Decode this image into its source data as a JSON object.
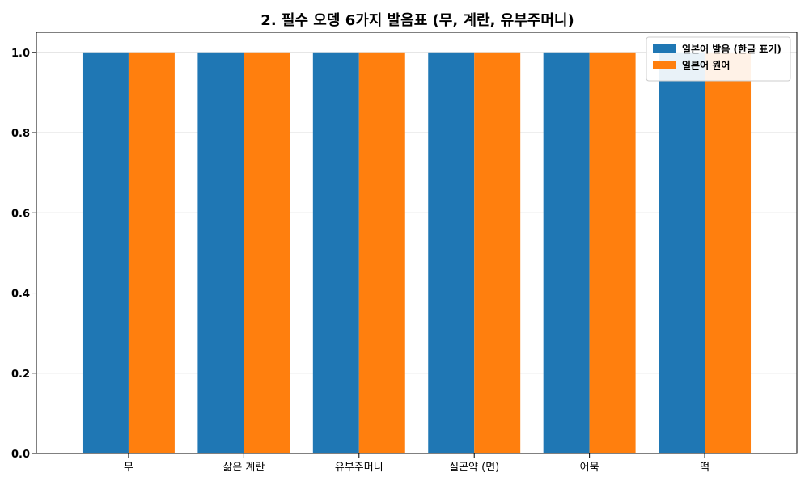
{
  "chart_data": {
    "type": "bar",
    "title": "2. 필수 오뎅 6가지 발음표 (무, 계란, 유부주머니)",
    "xlabel": "",
    "ylabel": "",
    "categories": [
      "무",
      "삶은 계란",
      "유부주머니",
      "실곤약 (면)",
      "어묵",
      "떡"
    ],
    "series": [
      {
        "name": "일본어 발음 (한글 표기)",
        "color": "#1f77b4",
        "values": [
          1.0,
          1.0,
          1.0,
          1.0,
          1.0,
          1.0
        ]
      },
      {
        "name": "일본어 원어",
        "color": "#ff7f0e",
        "values": [
          1.0,
          1.0,
          1.0,
          1.0,
          1.0,
          1.0
        ]
      }
    ],
    "ylim": [
      0,
      1.05
    ],
    "yticks": [
      "0.0",
      "0.2",
      "0.4",
      "0.6",
      "0.8",
      "1.0"
    ],
    "grid": "y",
    "legend_position": "top-right"
  }
}
